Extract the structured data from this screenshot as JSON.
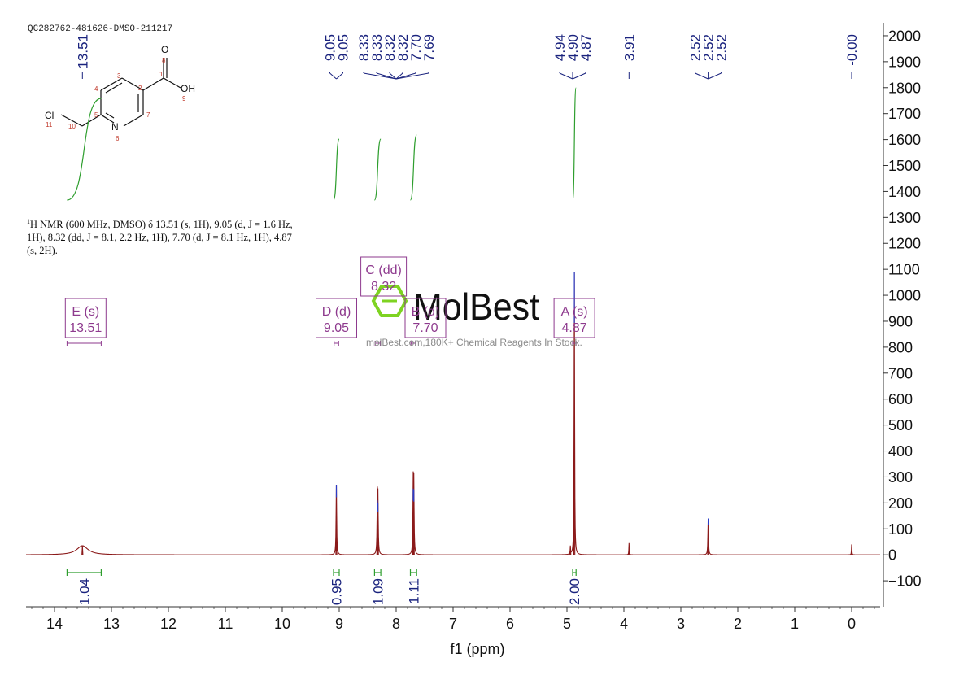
{
  "sample_id": "QC282762-481626-DMSO-211217",
  "nmr_text": {
    "nucleus_sup": "1",
    "line1": "H NMR (600 MHz, DMSO) δ 13.51 (s, 1H), 9.05 (d, J = 1.6 Hz,",
    "line2": "1H), 8.32 (dd, J = 8.1, 2.2 Hz, 1H), 7.70 (d, J = 8.1 Hz, 1H), 4.87",
    "line3": "(s, 2H)."
  },
  "structure": {
    "atoms": [
      {
        "label": "O",
        "num": "8"
      },
      {
        "label": "OH",
        "num": "9"
      },
      {
        "label": "Cl",
        "num": "11"
      },
      {
        "label": "N",
        "num": "6"
      }
    ],
    "carbon_numbers": [
      "1",
      "2",
      "3",
      "4",
      "5",
      "7",
      "10"
    ]
  },
  "watermark": {
    "brand": "MolBest",
    "tagline": "molBest.com,180K+ Chemical Reagents In Stock."
  },
  "colors": {
    "spectrum": "#8b1a1a",
    "peak_labels": "#1a237e",
    "integral": "#2e9e2e",
    "multiplet_box": "#8e3a8e",
    "axis": "#333333",
    "logo_green": "#7ed321"
  },
  "chart_data": {
    "type": "line",
    "xlabel": "f1 (ppm)",
    "x_axis_reversed": true,
    "xlim": [
      14.5,
      -0.5
    ],
    "ylim": [
      -200,
      2050
    ],
    "x_ticks": [
      14,
      13,
      12,
      11,
      10,
      9,
      8,
      7,
      6,
      5,
      4,
      3,
      2,
      1,
      0
    ],
    "y_ticks": [
      2000,
      1900,
      1800,
      1700,
      1600,
      1500,
      1400,
      1300,
      1200,
      1100,
      1000,
      900,
      800,
      700,
      600,
      500,
      400,
      300,
      200,
      100,
      0,
      -100
    ],
    "peaks": [
      {
        "ppm": 13.51,
        "height": 35,
        "width": 0.12
      },
      {
        "ppm": 9.05,
        "height": 270,
        "width": 0.006
      },
      {
        "ppm": 8.33,
        "height": 210,
        "width": 0.006
      },
      {
        "ppm": 8.32,
        "height": 200,
        "width": 0.006
      },
      {
        "ppm": 7.7,
        "height": 255,
        "width": 0.006
      },
      {
        "ppm": 7.69,
        "height": 250,
        "width": 0.006
      },
      {
        "ppm": 4.94,
        "height": 30,
        "width": 0.004
      },
      {
        "ppm": 4.87,
        "height": 1090,
        "width": 0.005
      },
      {
        "ppm": 3.91,
        "height": 45,
        "width": 0.004
      },
      {
        "ppm": 2.52,
        "height": 140,
        "width": 0.006
      },
      {
        "ppm": 0.0,
        "height": 40,
        "width": 0.004
      }
    ],
    "peak_label_groups": [
      {
        "labels": [
          "13.51"
        ],
        "anchor": 13.51
      },
      {
        "labels": [
          "9.05",
          "9.05"
        ],
        "anchor": 9.05
      },
      {
        "labels": [
          "8.33",
          "8.33",
          "8.32",
          "8.32",
          "7.70",
          "7.69"
        ],
        "anchor": 8.0
      },
      {
        "labels": [
          "4.94",
          "4.90",
          "4.87"
        ],
        "anchor": 4.9
      },
      {
        "labels": [
          "3.91"
        ],
        "anchor": 3.91
      },
      {
        "labels": [
          "2.52",
          "2.52",
          "2.52"
        ],
        "anchor": 2.52
      },
      {
        "labels": [
          "-0.00"
        ],
        "anchor": 0.0
      }
    ],
    "multiplets": [
      {
        "name": "E (s)",
        "value": "13.51",
        "ppm": 13.51,
        "range": [
          13.78,
          13.18
        ]
      },
      {
        "name": "D (d)",
        "value": "9.05",
        "ppm": 9.05,
        "range": [
          9.09,
          9.01
        ]
      },
      {
        "name": "C (dd)",
        "value": "8.32",
        "ppm": 8.32,
        "range": [
          8.37,
          8.28
        ]
      },
      {
        "name": "B (d)",
        "value": "7.70",
        "ppm": 7.7,
        "range": [
          7.74,
          7.66
        ]
      },
      {
        "name": "A (s)",
        "value": "4.87",
        "ppm": 4.87,
        "range": [
          4.9,
          4.84
        ]
      }
    ],
    "integrals": [
      {
        "value": "1.04",
        "range": [
          13.78,
          13.18
        ]
      },
      {
        "value": "0.95",
        "range": [
          9.1,
          9.0
        ]
      },
      {
        "value": "1.09",
        "range": [
          8.38,
          8.27
        ]
      },
      {
        "value": "1.11",
        "range": [
          7.75,
          7.64
        ]
      },
      {
        "value": "2.00",
        "range": [
          4.9,
          4.84
        ]
      }
    ]
  }
}
